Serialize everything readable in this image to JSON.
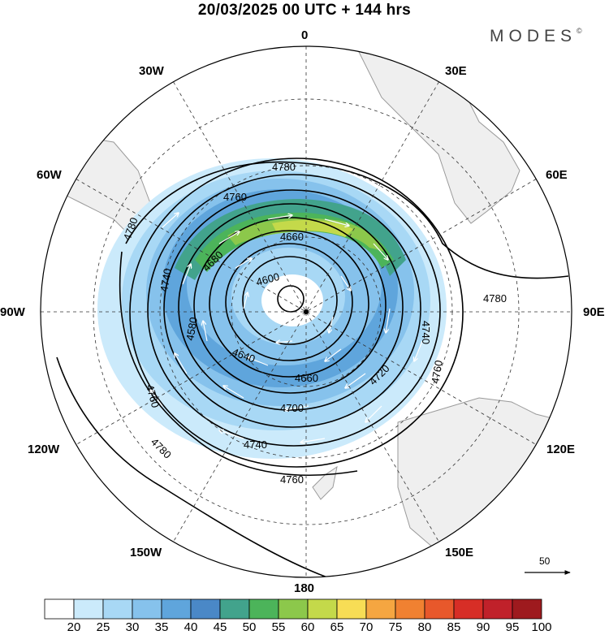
{
  "title": "20/03/2025  00 UTC  + 144 hrs",
  "brand": {
    "name": "MODES",
    "mark": "©"
  },
  "longitude_labels": {
    "lon_0": "0",
    "lon_30e": "30E",
    "lon_60e": "60E",
    "lon_90e": "90E",
    "lon_120e": "120E",
    "lon_150e": "150E",
    "lon_180": "180",
    "lon_150w": "150W",
    "lon_120w": "120W",
    "lon_90w": "90W",
    "lon_60w": "60W",
    "lon_30w": "30W"
  },
  "map": {
    "projection": "south-polar-stereographic",
    "contour_field": "geopotential height",
    "shaded_field": "wind speed",
    "contour_labels": [
      "4780",
      "4760",
      "4740",
      "4680",
      "4660",
      "4600",
      "4580",
      "4640",
      "4660",
      "4700",
      "4720",
      "4740",
      "4760",
      "4760",
      "4780",
      "4780",
      "4780",
      "4760",
      "4740"
    ],
    "wind_scale": {
      "label": "50"
    },
    "colors": {
      "land": "#efefef",
      "coast": "#9a9a9a",
      "contour": "#000000",
      "grid": "#333333"
    }
  },
  "colorbar": {
    "ticks": [
      "20",
      "25",
      "30",
      "35",
      "40",
      "45",
      "50",
      "55",
      "60",
      "65",
      "70",
      "75",
      "80",
      "85",
      "90",
      "95",
      "100"
    ],
    "colors": [
      "#ffffff",
      "#cbeafb",
      "#a8d8f5",
      "#86c2ec",
      "#5fa5dc",
      "#4a88c7",
      "#42a38c",
      "#4cb45a",
      "#8cc84b",
      "#c4d94a",
      "#f7dd55",
      "#f5a641",
      "#f08131",
      "#e8582b",
      "#d72e26",
      "#c0212a",
      "#9e1a1e"
    ]
  }
}
